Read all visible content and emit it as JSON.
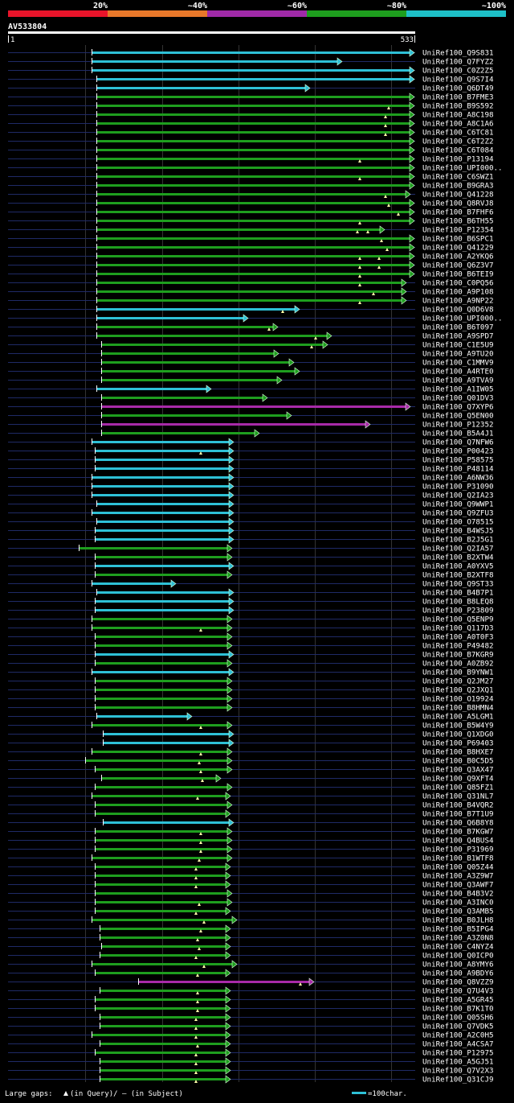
{
  "scale": {
    "labels": [
      "20%",
      "~40%",
      "~60%",
      "~80%",
      "~100%"
    ],
    "colors": [
      "#e8142a",
      "#e8782a",
      "#a02aa8",
      "#1e9e1e",
      "#1ec0c8"
    ]
  },
  "query": {
    "name": "AV533804",
    "start": "1",
    "end": "533"
  },
  "hit_color_map": {
    "c": "#2ec0d6",
    "g": "#1e9e1e",
    "p": "#a82aa8"
  },
  "hits": [
    {
      "label": "UniRef100_Q9S831",
      "c": "c",
      "s": 114,
      "e": 515,
      "g": []
    },
    {
      "label": "UniRef100_Q7FYZ2",
      "c": "c",
      "s": 114,
      "e": 425,
      "g": []
    },
    {
      "label": "UniRef100_C0Z2Z5",
      "c": "c",
      "s": 114,
      "e": 515,
      "g": []
    },
    {
      "label": "UniRef100_Q9S7I4",
      "c": "c",
      "s": 120,
      "e": 515,
      "g": []
    },
    {
      "label": "UniRef100_Q6DT49",
      "c": "c",
      "s": 120,
      "e": 385,
      "g": []
    },
    {
      "label": "UniRef100_B7FME3",
      "c": "g",
      "s": 120,
      "e": 515,
      "g": []
    },
    {
      "label": "UniRef100_B9S592",
      "c": "g",
      "s": 120,
      "e": 515,
      "g": [
        484
      ]
    },
    {
      "label": "UniRef100_A8C198",
      "c": "g",
      "s": 120,
      "e": 515,
      "g": [
        480
      ]
    },
    {
      "label": "UniRef100_A8C1A6",
      "c": "g",
      "s": 120,
      "e": 515,
      "g": [
        480
      ]
    },
    {
      "label": "UniRef100_C6TC81",
      "c": "g",
      "s": 120,
      "e": 515,
      "g": [
        480
      ]
    },
    {
      "label": "UniRef100_C6T2Z2",
      "c": "g",
      "s": 120,
      "e": 515,
      "g": []
    },
    {
      "label": "UniRef100_C6T084",
      "c": "g",
      "s": 120,
      "e": 515,
      "g": []
    },
    {
      "label": "UniRef100_P13194",
      "c": "g",
      "s": 120,
      "e": 515,
      "g": [
        448
      ]
    },
    {
      "label": "UniRef100_UPI000..",
      "c": "g",
      "s": 120,
      "e": 515,
      "g": []
    },
    {
      "label": "UniRef100_C6SWZ1",
      "c": "g",
      "s": 120,
      "e": 515,
      "g": [
        448
      ]
    },
    {
      "label": "UniRef100_B9GRA3",
      "c": "g",
      "s": 120,
      "e": 515,
      "g": []
    },
    {
      "label": "UniRef100_Q41228",
      "c": "g",
      "s": 120,
      "e": 510,
      "g": [
        480
      ]
    },
    {
      "label": "UniRef100_Q8RVJ8",
      "c": "g",
      "s": 120,
      "e": 515,
      "g": [
        484
      ]
    },
    {
      "label": "UniRef100_B7FHF6",
      "c": "g",
      "s": 120,
      "e": 515,
      "g": [
        496
      ]
    },
    {
      "label": "UniRef100_B6TH55",
      "c": "g",
      "s": 120,
      "e": 515,
      "g": [
        448
      ]
    },
    {
      "label": "UniRef100_P12354",
      "c": "g",
      "s": 120,
      "e": 478,
      "g": [
        445,
        458
      ]
    },
    {
      "label": "UniRef100_B6SPC1",
      "c": "g",
      "s": 120,
      "e": 515,
      "g": [
        475
      ]
    },
    {
      "label": "UniRef100_Q41229",
      "c": "g",
      "s": 120,
      "e": 515,
      "g": [
        482
      ]
    },
    {
      "label": "UniRef100_A2YKQ6",
      "c": "g",
      "s": 120,
      "e": 515,
      "g": [
        448,
        472
      ]
    },
    {
      "label": "UniRef100_Q6Z3V7",
      "c": "g",
      "s": 120,
      "e": 515,
      "g": [
        448,
        472
      ]
    },
    {
      "label": "UniRef100_B6TEI9",
      "c": "g",
      "s": 120,
      "e": 515,
      "g": [
        448
      ]
    },
    {
      "label": "UniRef100_C0PQ56",
      "c": "g",
      "s": 120,
      "e": 505,
      "g": [
        448
      ]
    },
    {
      "label": "UniRef100_A9P108",
      "c": "g",
      "s": 120,
      "e": 505,
      "g": [
        465
      ]
    },
    {
      "label": "UniRef100_A9NP22",
      "c": "g",
      "s": 120,
      "e": 505,
      "g": [
        448
      ]
    },
    {
      "label": "UniRef100_Q0D6V8",
      "c": "c",
      "s": 120,
      "e": 372,
      "g": [
        352
      ]
    },
    {
      "label": "UniRef100_UPI000..",
      "c": "c",
      "s": 120,
      "e": 308,
      "g": []
    },
    {
      "label": "UniRef100_B6T097",
      "c": "g",
      "s": 120,
      "e": 345,
      "g": [
        335
      ]
    },
    {
      "label": "UniRef100_A9SPD7",
      "c": "g",
      "s": 120,
      "e": 412,
      "g": [
        393
      ]
    },
    {
      "label": "UniRef100_C1E5U9",
      "c": "g",
      "s": 126,
      "e": 407,
      "g": [
        388
      ]
    },
    {
      "label": "UniRef100_A9TU20",
      "c": "g",
      "s": 126,
      "e": 346,
      "g": []
    },
    {
      "label": "UniRef100_C1MMV9",
      "c": "g",
      "s": 126,
      "e": 365,
      "g": []
    },
    {
      "label": "UniRef100_A4RTE0",
      "c": "g",
      "s": 126,
      "e": 372,
      "g": []
    },
    {
      "label": "UniRef100_A9TVA9",
      "c": "g",
      "s": 126,
      "e": 350,
      "g": []
    },
    {
      "label": "UniRef100_A1IW05",
      "c": "c",
      "s": 120,
      "e": 262,
      "g": []
    },
    {
      "label": "UniRef100_Q01DV3",
      "c": "g",
      "s": 126,
      "e": 332,
      "g": []
    },
    {
      "label": "UniRef100_Q7XYP6",
      "c": "p",
      "s": 126,
      "e": 510,
      "g": []
    },
    {
      "label": "UniRef100_Q5EN00",
      "c": "g",
      "s": 126,
      "e": 362,
      "g": []
    },
    {
      "label": "UniRef100_P12352",
      "c": "p",
      "s": 126,
      "e": 460,
      "g": []
    },
    {
      "label": "UniRef100_B5A4J1",
      "c": "g",
      "s": 126,
      "e": 322,
      "g": []
    },
    {
      "label": "UniRef100_Q7NFW6",
      "c": "c",
      "s": 114,
      "e": 290,
      "g": []
    },
    {
      "label": "UniRef100_P00423",
      "c": "c",
      "s": 118,
      "e": 290,
      "g": [
        250
      ]
    },
    {
      "label": "UniRef100_P58575",
      "c": "c",
      "s": 118,
      "e": 290,
      "g": []
    },
    {
      "label": "UniRef100_P48114",
      "c": "c",
      "s": 118,
      "e": 290,
      "g": []
    },
    {
      "label": "UniRef100_A6NW36",
      "c": "c",
      "s": 114,
      "e": 290,
      "g": []
    },
    {
      "label": "UniRef100_P31090",
      "c": "c",
      "s": 114,
      "e": 290,
      "g": []
    },
    {
      "label": "UniRef100_Q2IA23",
      "c": "c",
      "s": 114,
      "e": 290,
      "g": []
    },
    {
      "label": "UniRef100_Q9WWP1",
      "c": "c",
      "s": 120,
      "e": 290,
      "g": []
    },
    {
      "label": "UniRef100_Q9ZFU3",
      "c": "c",
      "s": 114,
      "e": 290,
      "g": []
    },
    {
      "label": "UniRef100_O78515",
      "c": "c",
      "s": 120,
      "e": 290,
      "g": []
    },
    {
      "label": "UniRef100_B4WSJ5",
      "c": "c",
      "s": 118,
      "e": 290,
      "g": []
    },
    {
      "label": "UniRef100_B2J5G1",
      "c": "c",
      "s": 118,
      "e": 290,
      "g": []
    },
    {
      "label": "UniRef100_Q2IA57",
      "c": "g",
      "s": 98,
      "e": 288,
      "g": []
    },
    {
      "label": "UniRef100_B2XTW4",
      "c": "g",
      "s": 118,
      "e": 288,
      "g": []
    },
    {
      "label": "UniRef100_A0YXV5",
      "c": "c",
      "s": 118,
      "e": 290,
      "g": []
    },
    {
      "label": "UniRef100_B2XTF8",
      "c": "g",
      "s": 118,
      "e": 288,
      "g": []
    },
    {
      "label": "UniRef100_Q9ST33",
      "c": "c",
      "s": 114,
      "e": 218,
      "g": []
    },
    {
      "label": "UniRef100_B4B7P1",
      "c": "c",
      "s": 120,
      "e": 290,
      "g": []
    },
    {
      "label": "UniRef100_B8LEQ8",
      "c": "c",
      "s": 118,
      "e": 290,
      "g": []
    },
    {
      "label": "UniRef100_P23809",
      "c": "c",
      "s": 118,
      "e": 290,
      "g": []
    },
    {
      "label": "UniRef100_Q5ENP9",
      "c": "g",
      "s": 114,
      "e": 288,
      "g": []
    },
    {
      "label": "UniRef100_Q117D3",
      "c": "g",
      "s": 114,
      "e": 288,
      "g": [
        250
      ]
    },
    {
      "label": "UniRef100_A0T0F3",
      "c": "g",
      "s": 118,
      "e": 288,
      "g": []
    },
    {
      "label": "UniRef100_P49482",
      "c": "g",
      "s": 118,
      "e": 288,
      "g": []
    },
    {
      "label": "UniRef100_B7KGR9",
      "c": "c",
      "s": 118,
      "e": 290,
      "g": []
    },
    {
      "label": "UniRef100_A0ZB92",
      "c": "g",
      "s": 118,
      "e": 288,
      "g": []
    },
    {
      "label": "UniRef100_B9YNW1",
      "c": "c",
      "s": 114,
      "e": 290,
      "g": []
    },
    {
      "label": "UniRef100_Q2JM27",
      "c": "g",
      "s": 118,
      "e": 288,
      "g": []
    },
    {
      "label": "UniRef100_Q2JXQ1",
      "c": "g",
      "s": 118,
      "e": 288,
      "g": []
    },
    {
      "label": "UniRef100_O19924",
      "c": "g",
      "s": 118,
      "e": 288,
      "g": []
    },
    {
      "label": "UniRef100_B8HMN4",
      "c": "g",
      "s": 118,
      "e": 288,
      "g": []
    },
    {
      "label": "UniRef100_A5LGM1",
      "c": "c",
      "s": 120,
      "e": 238,
      "g": []
    },
    {
      "label": "UniRef100_B5W4Y9",
      "c": "g",
      "s": 114,
      "e": 288,
      "g": [
        250
      ]
    },
    {
      "label": "UniRef100_Q1XDG0",
      "c": "c",
      "s": 128,
      "e": 290,
      "g": []
    },
    {
      "label": "UniRef100_P69403",
      "c": "c",
      "s": 128,
      "e": 290,
      "g": []
    },
    {
      "label": "UniRef100_B8HXE7",
      "c": "g",
      "s": 114,
      "e": 288,
      "g": [
        250
      ]
    },
    {
      "label": "UniRef100_B0C5D5",
      "c": "g",
      "s": 106,
      "e": 288,
      "g": [
        248
      ]
    },
    {
      "label": "UniRef100_Q3AX47",
      "c": "g",
      "s": 118,
      "e": 288,
      "g": [
        250
      ]
    },
    {
      "label": "UniRef100_Q9XFT4",
      "c": "g",
      "s": 126,
      "e": 274,
      "g": [
        252
      ]
    },
    {
      "label": "UniRef100_Q85FZ1",
      "c": "g",
      "s": 118,
      "e": 288,
      "g": []
    },
    {
      "label": "UniRef100_Q31NL7",
      "c": "g",
      "s": 114,
      "e": 286,
      "g": [
        246
      ]
    },
    {
      "label": "UniRef100_B4VQR2",
      "c": "g",
      "s": 118,
      "e": 288,
      "g": []
    },
    {
      "label": "UniRef100_B7T1U9",
      "c": "g",
      "s": 118,
      "e": 286,
      "g": []
    },
    {
      "label": "UniRef100_Q6B8Y8",
      "c": "c",
      "s": 128,
      "e": 290,
      "g": []
    },
    {
      "label": "UniRef100_B7KGW7",
      "c": "g",
      "s": 118,
      "e": 288,
      "g": [
        250
      ]
    },
    {
      "label": "UniRef100_Q4BUS4",
      "c": "g",
      "s": 118,
      "e": 288,
      "g": [
        250
      ]
    },
    {
      "label": "UniRef100_P31969",
      "c": "g",
      "s": 118,
      "e": 288,
      "g": [
        250
      ]
    },
    {
      "label": "UniRef100_B1WTF8",
      "c": "g",
      "s": 114,
      "e": 288,
      "g": [
        248
      ]
    },
    {
      "label": "UniRef100_Q05Z44",
      "c": "g",
      "s": 118,
      "e": 286,
      "g": [
        244
      ]
    },
    {
      "label": "UniRef100_A3Z9W7",
      "c": "g",
      "s": 118,
      "e": 286,
      "g": [
        244
      ]
    },
    {
      "label": "UniRef100_Q3AWF7",
      "c": "g",
      "s": 118,
      "e": 286,
      "g": [
        244
      ]
    },
    {
      "label": "UniRef100_B4B3V2",
      "c": "g",
      "s": 118,
      "e": 288,
      "g": []
    },
    {
      "label": "UniRef100_A3INC0",
      "c": "g",
      "s": 118,
      "e": 288,
      "g": [
        248
      ]
    },
    {
      "label": "UniRef100_Q3AMB5",
      "c": "g",
      "s": 118,
      "e": 286,
      "g": [
        244
      ]
    },
    {
      "label": "UniRef100_B0JLH8",
      "c": "g",
      "s": 114,
      "e": 294,
      "g": [
        254
      ]
    },
    {
      "label": "UniRef100_B5IPG4",
      "c": "g",
      "s": 124,
      "e": 286,
      "g": [
        250
      ]
    },
    {
      "label": "UniRef100_A3Z0N8",
      "c": "g",
      "s": 124,
      "e": 286,
      "g": [
        246
      ]
    },
    {
      "label": "UniRef100_C4NYZ4",
      "c": "g",
      "s": 126,
      "e": 286,
      "g": [
        248
      ]
    },
    {
      "label": "UniRef100_Q0ICP0",
      "c": "g",
      "s": 124,
      "e": 286,
      "g": [
        244
      ]
    },
    {
      "label": "UniRef100_A8YMY6",
      "c": "g",
      "s": 114,
      "e": 294,
      "g": [
        254
      ]
    },
    {
      "label": "UniRef100_A9BDY6",
      "c": "g",
      "s": 118,
      "e": 286,
      "g": [
        246
      ]
    },
    {
      "label": "UniRef100_Q8VZZ9",
      "c": "p",
      "s": 172,
      "e": 390,
      "g": [
        374
      ]
    },
    {
      "label": "UniRef100_Q7U4V3",
      "c": "g",
      "s": 124,
      "e": 286,
      "g": [
        246
      ]
    },
    {
      "label": "UniRef100_A5GR45",
      "c": "g",
      "s": 118,
      "e": 286,
      "g": [
        246
      ]
    },
    {
      "label": "UniRef100_B7K1T0",
      "c": "g",
      "s": 118,
      "e": 286,
      "g": [
        246
      ]
    },
    {
      "label": "UniRef100_Q05SH6",
      "c": "g",
      "s": 124,
      "e": 286,
      "g": [
        244
      ]
    },
    {
      "label": "UniRef100_Q7VDK5",
      "c": "g",
      "s": 124,
      "e": 286,
      "g": [
        244
      ]
    },
    {
      "label": "UniRef100_A2C0H5",
      "c": "g",
      "s": 114,
      "e": 286,
      "g": [
        244
      ]
    },
    {
      "label": "UniRef100_A4CSA7",
      "c": "g",
      "s": 124,
      "e": 286,
      "g": [
        246
      ]
    },
    {
      "label": "UniRef100_P12975",
      "c": "g",
      "s": 118,
      "e": 286,
      "g": [
        244
      ]
    },
    {
      "label": "UniRef100_A5GJ51",
      "c": "g",
      "s": 124,
      "e": 286,
      "g": [
        244
      ]
    },
    {
      "label": "UniRef100_Q7V2X3",
      "c": "g",
      "s": 124,
      "e": 286,
      "g": [
        244
      ]
    },
    {
      "label": "UniRef100_Q31CJ9",
      "c": "g",
      "s": 124,
      "e": 286,
      "g": [
        244
      ]
    }
  ],
  "footer": {
    "gaps_prefix": "Large gaps:",
    "gaps_query": "(in Query)/",
    "gaps_subject": "– (in Subject)",
    "scale_text": "=100char."
  }
}
